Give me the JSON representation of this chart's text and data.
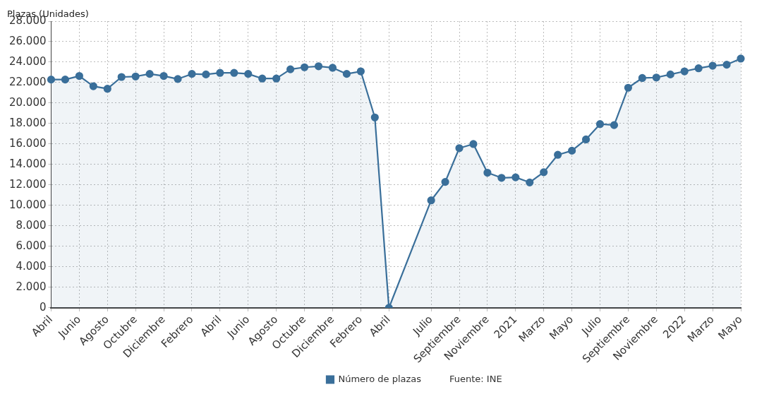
{
  "chart_data": {
    "type": "area",
    "ylabel": "Plazas (Unidades)",
    "categories": [
      "Abril",
      null,
      "Junio",
      null,
      "Agosto",
      null,
      "Octubre",
      null,
      "Diciembre",
      null,
      "Febrero",
      null,
      "Abril",
      null,
      "Junio",
      null,
      "Agosto",
      null,
      "Octubre",
      null,
      "Diciembre",
      null,
      "Febrero",
      null,
      "Abril",
      null,
      null,
      "Julio",
      null,
      "Septiembre",
      null,
      "Noviembre",
      null,
      "2021",
      null,
      "Marzo",
      null,
      "Mayo",
      null,
      "Julio",
      null,
      "Septiembre",
      null,
      "Noviembre",
      null,
      "2022",
      null,
      "Marzo",
      null,
      "Mayo"
    ],
    "series": [
      {
        "name": "Número de plazas",
        "color": "#3a6f9a",
        "values": [
          22300,
          22300,
          22650,
          21650,
          21400,
          22550,
          22600,
          22850,
          22650,
          22350,
          22850,
          22800,
          22950,
          22950,
          22850,
          22400,
          22400,
          23300,
          23500,
          23600,
          23450,
          22850,
          23100,
          18600,
          0,
          null,
          null,
          10500,
          12300,
          15600,
          16000,
          13200,
          12700,
          12750,
          12250,
          13250,
          14950,
          15350,
          16450,
          17950,
          17850,
          21500,
          22450,
          22500,
          22800,
          23100,
          23400,
          23650,
          23750,
          24350
        ]
      }
    ],
    "ylim": [
      0,
      28000
    ],
    "yticks": [
      0,
      {
        "value": 2000,
        "label": "2.000"
      },
      {
        "value": 4000,
        "label": "4.000"
      },
      {
        "value": 6000,
        "label": "6.000"
      },
      {
        "value": 8000,
        "label": "8.000"
      },
      {
        "value": 10000,
        "label": "10.000"
      },
      {
        "value": 12000,
        "label": "12.000"
      },
      {
        "value": 14000,
        "label": "14.000"
      },
      {
        "value": 16000,
        "label": "16.000"
      },
      {
        "value": 18000,
        "label": "18.000"
      },
      {
        "value": 20000,
        "label": "20.000"
      },
      {
        "value": 22000,
        "label": "22.000"
      },
      {
        "value": 24000,
        "label": "24.000"
      },
      {
        "value": 26000,
        "label": "26.000"
      },
      {
        "value": 28000,
        "label": "28.000"
      }
    ],
    "grid": true,
    "legend": "bottom",
    "marker": "circle",
    "line_style": "solid",
    "annotations": [
      "Fuente: INE"
    ]
  }
}
